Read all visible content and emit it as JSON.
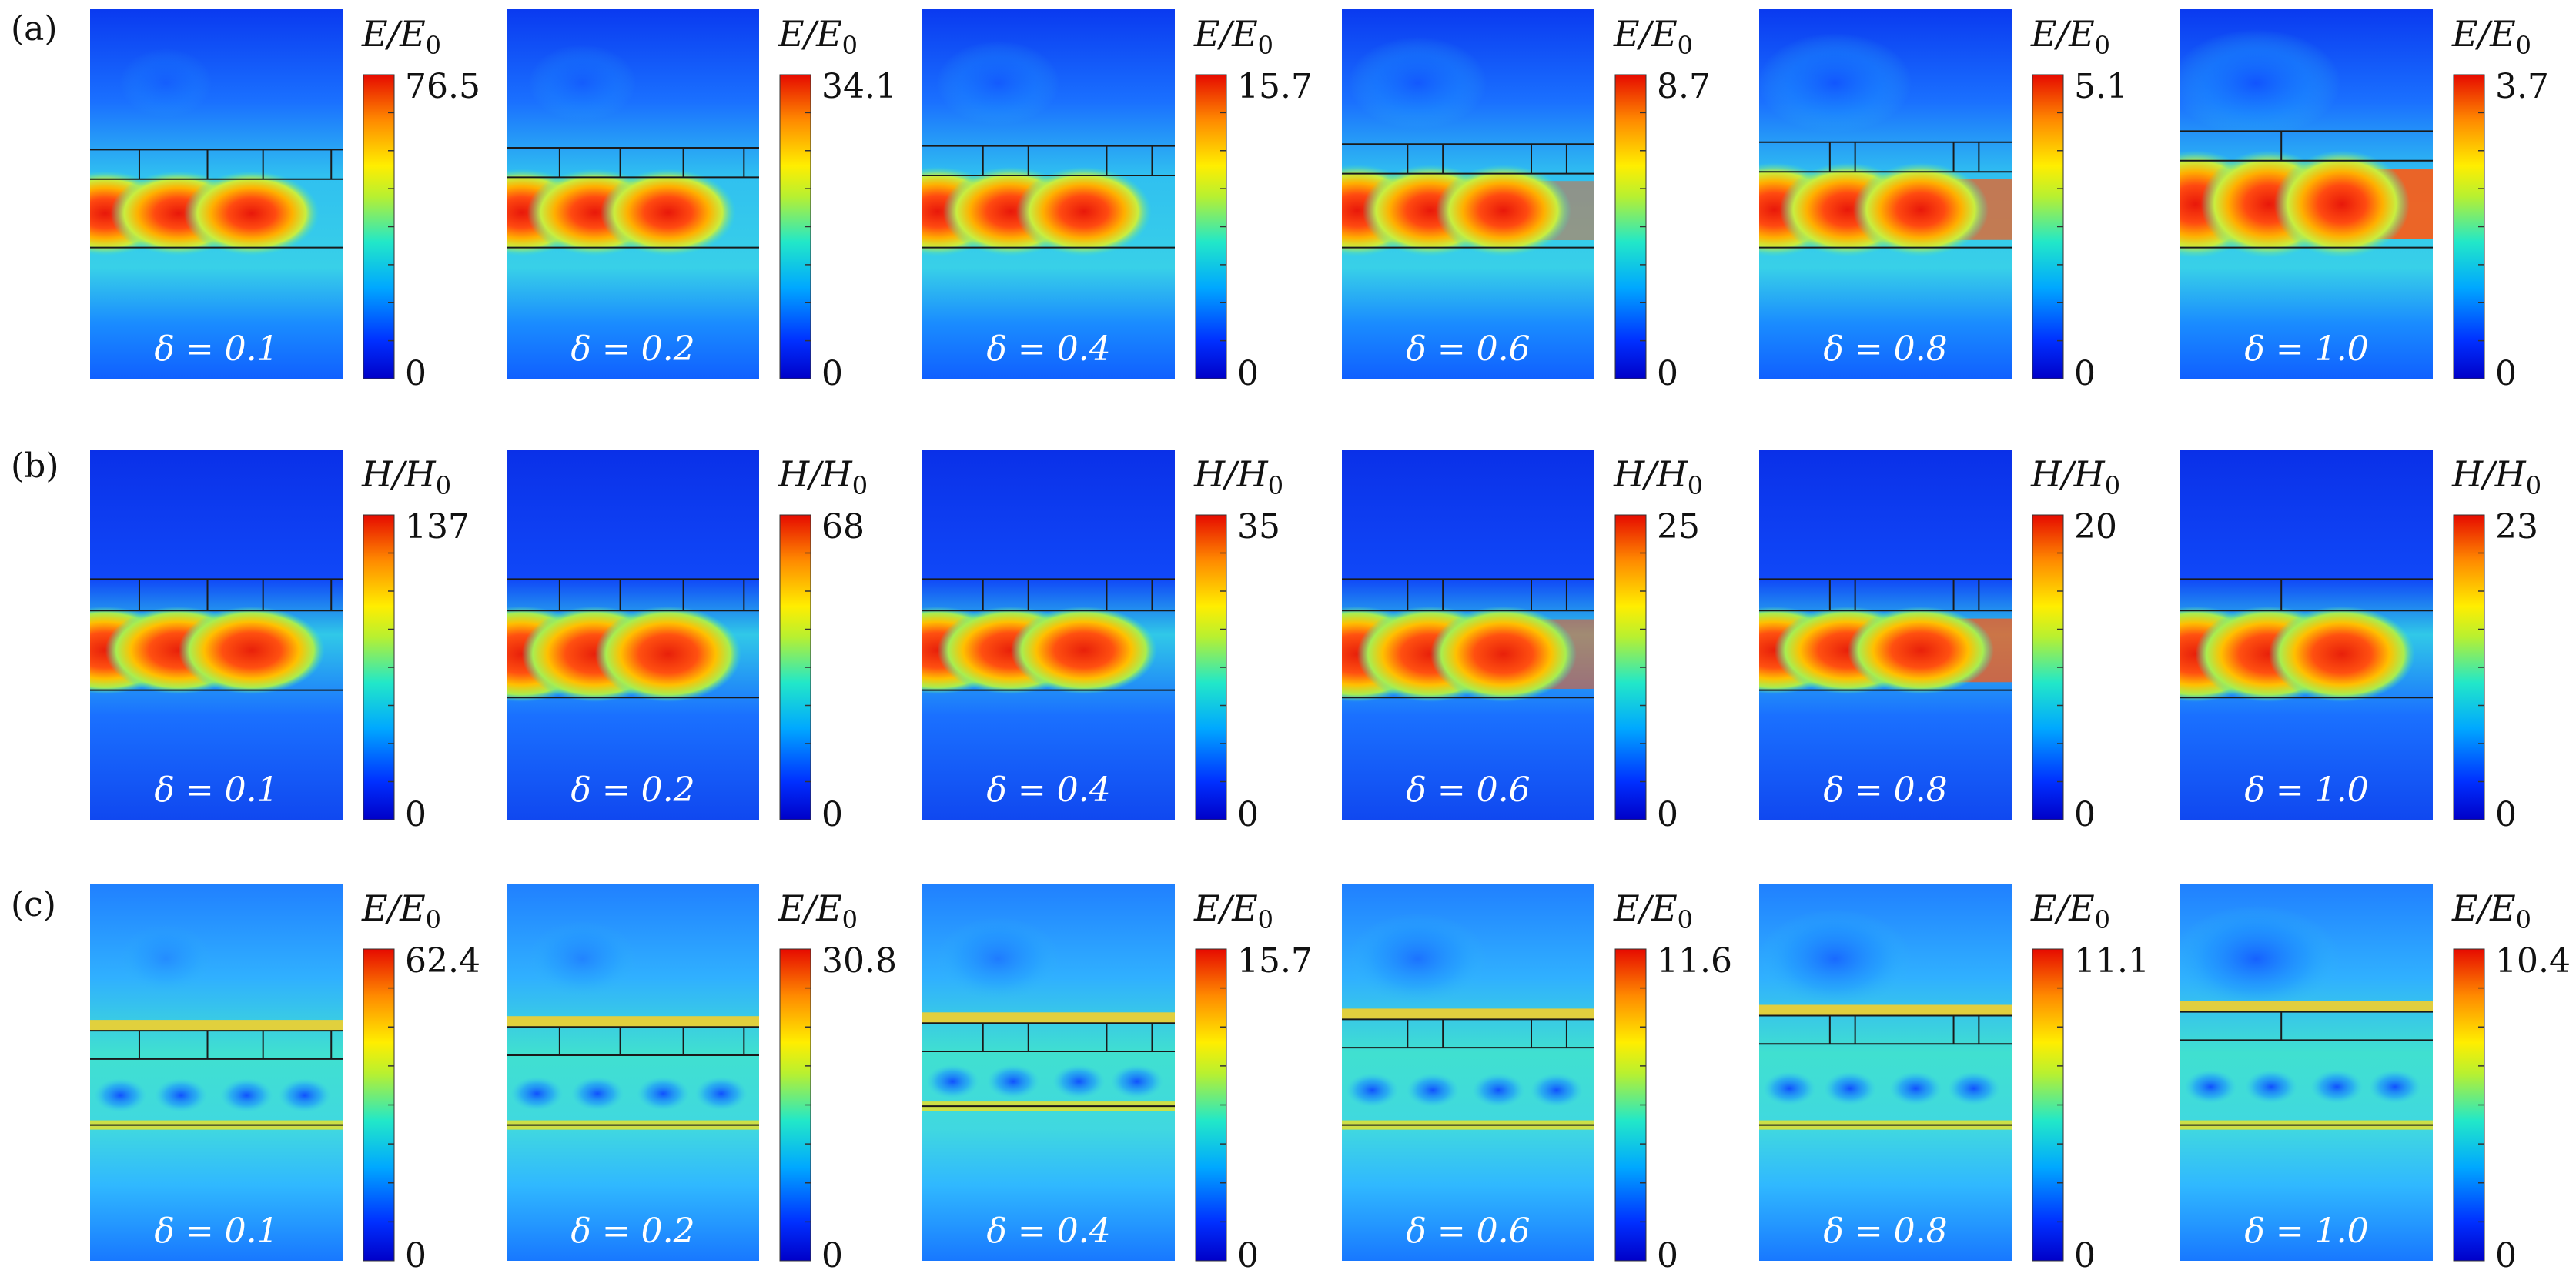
{
  "chart_data": {
    "type": "heatmap",
    "title": "",
    "rows": [
      {
        "label": "(a)",
        "quantity": "E/E",
        "quantity_sub": "0",
        "field": "E",
        "colormap": "jet",
        "panels": [
          {
            "delta": "δ = 0.1",
            "cmin": "0",
            "cmax": "76.5",
            "max": 76.5,
            "slots": 2,
            "slot_width": 0.27,
            "ridge_fraction": 0.05
          },
          {
            "delta": "δ = 0.2",
            "cmin": "0",
            "cmax": "34.1",
            "max": 34.1,
            "slots": 2,
            "slot_width": 0.24,
            "ridge_fraction": 0.1
          },
          {
            "delta": "δ = 0.4",
            "cmin": "0",
            "cmax": "15.7",
            "max": 15.7,
            "slots": 2,
            "slot_width": 0.18,
            "ridge_fraction": 0.25
          },
          {
            "delta": "δ = 0.6",
            "cmin": "0",
            "cmax": "8.7",
            "max": 8.7,
            "slots": 2,
            "slot_width": 0.14,
            "ridge_fraction": 0.45
          },
          {
            "delta": "δ = 0.8",
            "cmin": "0",
            "cmax": "5.1",
            "max": 5.1,
            "slots": 2,
            "slot_width": 0.1,
            "ridge_fraction": 0.7
          },
          {
            "delta": "δ = 1.0",
            "cmin": "0",
            "cmax": "3.7",
            "max": 3.7,
            "slots": 1,
            "slot_width": 0.0,
            "ridge_fraction": 0.9
          }
        ]
      },
      {
        "label": "(b)",
        "quantity": "H/H",
        "quantity_sub": "0",
        "field": "H",
        "colormap": "jet",
        "panels": [
          {
            "delta": "δ = 0.1",
            "cmin": "0",
            "cmax": "137",
            "max": 137,
            "slots": 2,
            "slot_width": 0.27,
            "ridge_fraction": 0.1
          },
          {
            "delta": "δ = 0.2",
            "cmin": "0",
            "cmax": "68",
            "max": 68,
            "slots": 2,
            "slot_width": 0.24,
            "ridge_fraction": 0.15
          },
          {
            "delta": "δ = 0.4",
            "cmin": "0",
            "cmax": "35",
            "max": 35,
            "slots": 2,
            "slot_width": 0.18,
            "ridge_fraction": 0.2
          },
          {
            "delta": "δ = 0.6",
            "cmin": "0",
            "cmax": "25",
            "max": 25,
            "slots": 2,
            "slot_width": 0.14,
            "ridge_fraction": 0.55
          },
          {
            "delta": "δ = 0.8",
            "cmin": "0",
            "cmax": "20",
            "max": 20,
            "slots": 2,
            "slot_width": 0.1,
            "ridge_fraction": 0.75
          },
          {
            "delta": "δ = 1.0",
            "cmin": "0",
            "cmax": "23",
            "max": 23,
            "slots": 1,
            "slot_width": 0.0,
            "ridge_fraction": 0.2
          }
        ]
      },
      {
        "label": "(c)",
        "quantity": "E/E",
        "quantity_sub": "0",
        "field": "Ec",
        "colormap": "jet",
        "panels": [
          {
            "delta": "δ = 0.1",
            "cmin": "0",
            "cmax": "62.4",
            "max": 62.4,
            "slots": 2,
            "slot_width": 0.27,
            "ridge_fraction": 0.0
          },
          {
            "delta": "δ = 0.2",
            "cmin": "0",
            "cmax": "30.8",
            "max": 30.8,
            "slots": 2,
            "slot_width": 0.24,
            "ridge_fraction": 0.0
          },
          {
            "delta": "δ = 0.4",
            "cmin": "0",
            "cmax": "15.7",
            "max": 15.7,
            "slots": 2,
            "slot_width": 0.18,
            "ridge_fraction": 0.0
          },
          {
            "delta": "δ = 0.6",
            "cmin": "0",
            "cmax": "11.6",
            "max": 11.6,
            "slots": 2,
            "slot_width": 0.14,
            "ridge_fraction": 0.0
          },
          {
            "delta": "δ = 0.8",
            "cmin": "0",
            "cmax": "11.1",
            "max": 11.1,
            "slots": 2,
            "slot_width": 0.1,
            "ridge_fraction": 0.0
          },
          {
            "delta": "δ = 1.0",
            "cmin": "0",
            "cmax": "10.4",
            "max": 10.4,
            "slots": 1,
            "slot_width": 0.0,
            "ridge_fraction": 0.0
          }
        ]
      }
    ]
  }
}
